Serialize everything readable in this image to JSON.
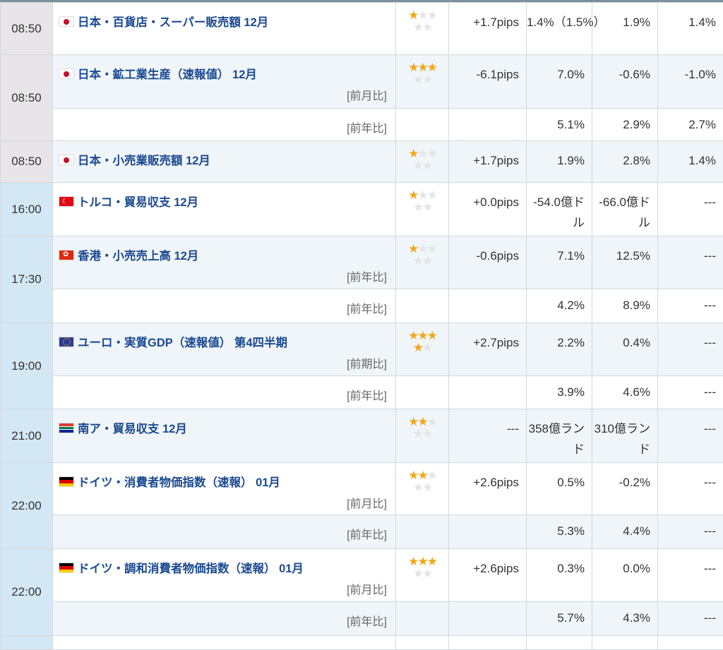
{
  "colors": {
    "title": "#1b4a90",
    "star_on": "#f0a818",
    "star_off": "#e4e4e4",
    "time_jp_bg": "#e8e5e8",
    "time_bg": "#d3e7f4",
    "alt_row": "#f0f5f9"
  },
  "events": [
    {
      "time": "08:50",
      "flag": "jp-flag",
      "title": "日本・百貨店・スーパー販売額 12月",
      "impact": 1,
      "pips": "+1.7pips",
      "rows": [
        {
          "label": "",
          "previous": "1.4%（1.5%）",
          "forecast": "1.9%",
          "actual": "1.4%"
        }
      ]
    },
    {
      "time": "08:50",
      "flag": "jp-flag",
      "title": "日本・鉱工業生産（速報値） 12月",
      "impact": 3,
      "pips": "-6.1pips",
      "rows": [
        {
          "label": "[前月比]",
          "previous": "7.0%",
          "forecast": "-0.6%",
          "actual": "-1.0%"
        },
        {
          "label": "[前年比]",
          "previous": "5.1%",
          "forecast": "2.9%",
          "actual": "2.7%"
        }
      ]
    },
    {
      "time": "08:50",
      "flag": "jp-flag",
      "title": "日本・小売業販売額 12月",
      "impact": 1,
      "pips": "+1.7pips",
      "rows": [
        {
          "label": "",
          "previous": "1.9%",
          "forecast": "2.8%",
          "actual": "1.4%"
        }
      ]
    },
    {
      "time": "16:00",
      "flag": "tr-flag",
      "title": "トルコ・貿易収支 12月",
      "impact": 1,
      "pips": "+0.0pips",
      "rows": [
        {
          "label": "",
          "previous": "-54.0億ドル",
          "forecast": "-66.0億ドル",
          "actual": "---"
        }
      ]
    },
    {
      "time": "17:30",
      "flag": "hk-flag",
      "title": "香港・小売売上高 12月",
      "impact": 1,
      "pips": "-0.6pips",
      "rows": [
        {
          "label": "[前年比]",
          "previous": "7.1%",
          "forecast": "12.5%",
          "actual": "---"
        },
        {
          "label": "[前年比]",
          "previous": "4.2%",
          "forecast": "8.9%",
          "actual": "---"
        }
      ]
    },
    {
      "time": "19:00",
      "flag": "eu-flag",
      "title": "ユーロ・実質GDP（速報値） 第4四半期",
      "impact": 4,
      "pips": "+2.7pips",
      "rows": [
        {
          "label": "[前期比]",
          "previous": "2.2%",
          "forecast": "0.4%",
          "actual": "---"
        },
        {
          "label": "[前年比]",
          "previous": "3.9%",
          "forecast": "4.6%",
          "actual": "---"
        }
      ]
    },
    {
      "time": "21:00",
      "flag": "za-flag",
      "title": "南ア・貿易収支 12月",
      "impact": 2,
      "pips": "---",
      "rows": [
        {
          "label": "",
          "previous": "358億ランド",
          "forecast": "310億ランド",
          "actual": "---"
        }
      ]
    },
    {
      "time": "22:00",
      "flag": "de-flag",
      "title": "ドイツ・消費者物価指数（速報） 01月",
      "impact": 2,
      "pips": "+2.6pips",
      "rows": [
        {
          "label": "[前月比]",
          "previous": "0.5%",
          "forecast": "-0.2%",
          "actual": "---"
        },
        {
          "label": "[前年比]",
          "previous": "5.3%",
          "forecast": "4.4%",
          "actual": "---"
        }
      ]
    },
    {
      "time": "22:00",
      "flag": "de-flag",
      "title": "ドイツ・調和消費者物価指数（速報） 01月",
      "impact": 3,
      "pips": "+2.6pips",
      "rows": [
        {
          "label": "[前月比]",
          "previous": "0.3%",
          "forecast": "0.0%",
          "actual": "---"
        },
        {
          "label": "[前年比]",
          "previous": "5.7%",
          "forecast": "4.3%",
          "actual": "---"
        }
      ]
    }
  ]
}
